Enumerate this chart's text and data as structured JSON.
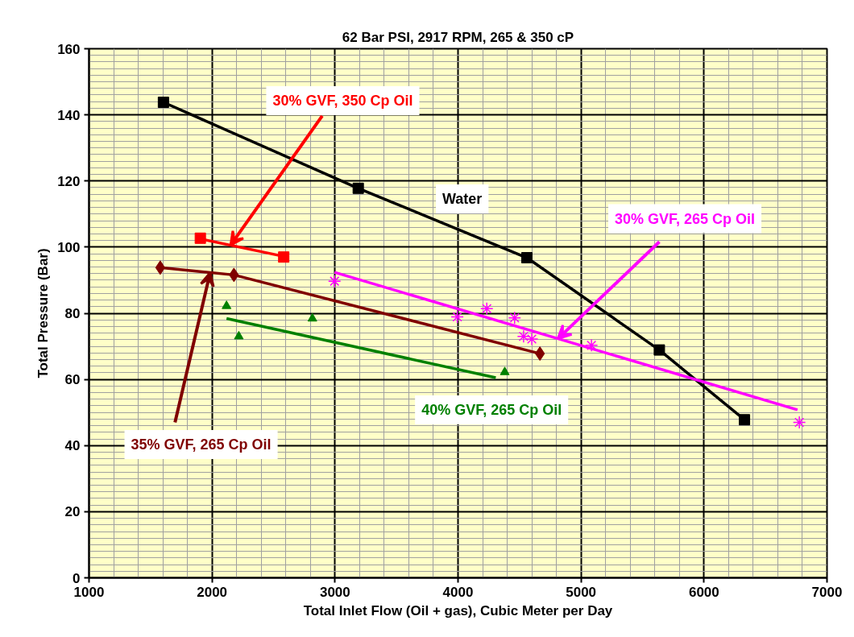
{
  "chart_data": {
    "type": "line",
    "title": "62 Bar PSI, 2917 RPM, 265 & 350 cP",
    "xlabel": "Total Inlet Flow (Oil + gas), Cubic Meter per Day",
    "ylabel": "Total Pressure (Bar)",
    "xlim": [
      1000,
      7000
    ],
    "xticks": [
      1000,
      2000,
      3000,
      4000,
      5000,
      6000,
      7000
    ],
    "ylim": [
      0,
      160
    ],
    "yticks": [
      0,
      20,
      40,
      60,
      80,
      100,
      120,
      140,
      160
    ],
    "grid": true,
    "series": [
      {
        "color": "#000000",
        "marker": "square",
        "x": [
          1605,
          3189,
          4560,
          5637,
          6329
        ],
        "values": [
          143.8,
          117.8,
          96.8,
          68.9,
          47.8
        ]
      },
      {
        "type": "scatter",
        "color": "#ff0000",
        "marker": "square",
        "x": [
          1905,
          2583
        ],
        "values": [
          102.7,
          97.0
        ]
      },
      {
        "color": "#ff0000",
        "marker": "none",
        "x": [
          1905,
          2583
        ],
        "values": [
          102.5,
          97.2
        ]
      },
      {
        "color": "#800000",
        "marker": "diamond",
        "x": [
          1579,
          2178,
          4666
        ],
        "values": [
          93.8,
          91.6,
          67.8
        ]
      },
      {
        "type": "scatter",
        "color": "#008000",
        "marker": "triangle",
        "x": [
          2118,
          2218,
          2816,
          4380
        ],
        "values": [
          82.2,
          73.0,
          78.4,
          62.2
        ]
      },
      {
        "color": "#008000",
        "marker": "none",
        "x": [
          2118,
          4307
        ],
        "values": [
          78.4,
          60.5
        ]
      },
      {
        "type": "scatter",
        "color": "#ff00ff",
        "marker": "cross",
        "x": [
          2996,
          3994,
          4234,
          4460,
          4533,
          4600,
          5085,
          6775
        ],
        "values": [
          89.7,
          78.9,
          81.4,
          78.6,
          73.0,
          72.2,
          70.3,
          47.0
        ]
      },
      {
        "color": "#ff00ff",
        "marker": "none",
        "x": [
          2996,
          6760
        ],
        "values": [
          92.4,
          50.8
        ]
      }
    ],
    "annotations": [
      {
        "text": "30% GVF, 350 Cp Oil",
        "x": 2151,
        "y": 100.6
      },
      {
        "text": "30% GVF, 265 Cp Oil",
        "x": 4812,
        "y": 72.3
      },
      {
        "text": "35% GVF, 265 Cp Oil",
        "x": 1985,
        "y": 92.3
      },
      "40% GVF, 265 Cp Oil",
      "Water"
    ]
  }
}
